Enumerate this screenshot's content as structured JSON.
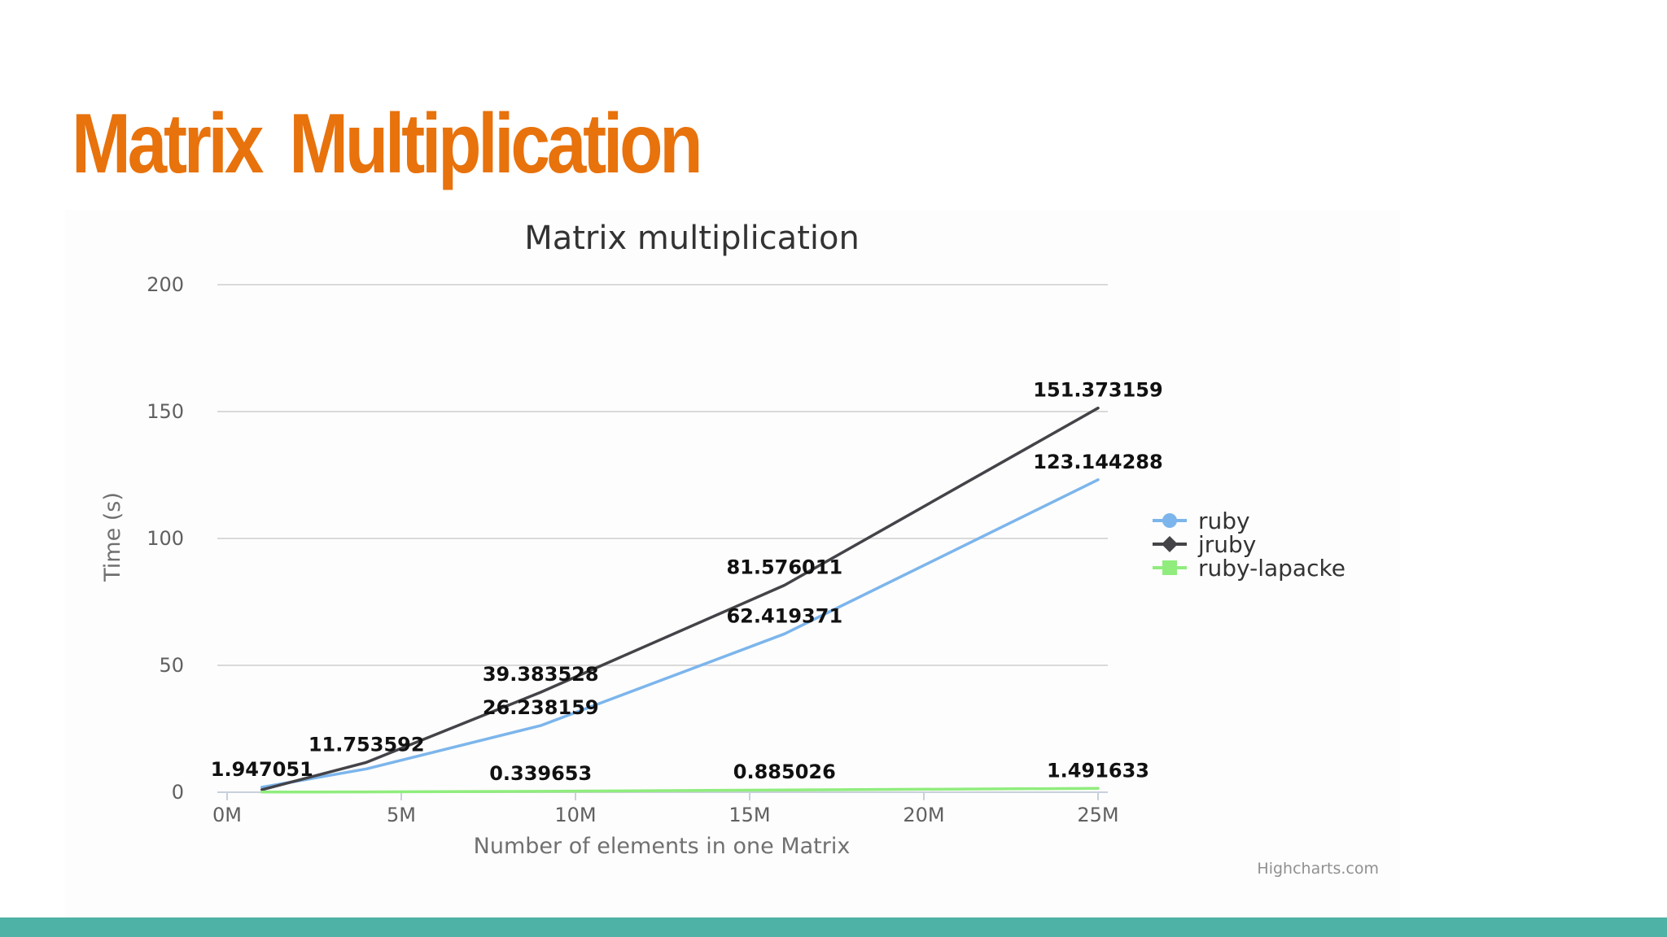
{
  "slide": {
    "title": "Matrix  Multiplication"
  },
  "chart_data": {
    "type": "line",
    "title": "Matrix multiplication",
    "xlabel": "Number of elements in one Matrix",
    "ylabel": "Time (s)",
    "xlim": [
      0,
      25000000
    ],
    "ylim": [
      0,
      200
    ],
    "x_ticks": [
      {
        "value": 0,
        "label": "0M"
      },
      {
        "value": 5000000,
        "label": "5M"
      },
      {
        "value": 10000000,
        "label": "10M"
      },
      {
        "value": 15000000,
        "label": "15M"
      },
      {
        "value": 20000000,
        "label": "20M"
      },
      {
        "value": 25000000,
        "label": "25M"
      }
    ],
    "y_ticks": [
      {
        "value": 0,
        "label": "0"
      },
      {
        "value": 50,
        "label": "50"
      },
      {
        "value": 100,
        "label": "100"
      },
      {
        "value": 150,
        "label": "150"
      },
      {
        "value": 200,
        "label": "200"
      }
    ],
    "grid": true,
    "legend_position": "right",
    "credit": "Highcharts.com",
    "series": [
      {
        "name": "ruby",
        "color": "#7cb5ec",
        "marker": "circle",
        "points": [
          {
            "x": 1000000,
            "y": 1.947051,
            "label": "1.947051"
          },
          {
            "x": 4000000,
            "y": 9.2
          },
          {
            "x": 9000000,
            "y": 26.238159,
            "label": "26.238159"
          },
          {
            "x": 16000000,
            "y": 62.419371,
            "label": "62.419371"
          },
          {
            "x": 25000000,
            "y": 123.144288,
            "label": "123.144288"
          }
        ]
      },
      {
        "name": "jruby",
        "color": "#434348",
        "marker": "diamond",
        "points": [
          {
            "x": 1000000,
            "y": 1.0
          },
          {
            "x": 4000000,
            "y": 11.753592,
            "label": "11.753592"
          },
          {
            "x": 9000000,
            "y": 39.383528,
            "label": "39.383528"
          },
          {
            "x": 16000000,
            "y": 81.576011,
            "label": "81.576011"
          },
          {
            "x": 25000000,
            "y": 151.373159,
            "label": "151.373159"
          }
        ]
      },
      {
        "name": "ruby-lapacke",
        "color": "#90ed7d",
        "marker": "square",
        "points": [
          {
            "x": 1000000,
            "y": 0.05
          },
          {
            "x": 4000000,
            "y": 0.12
          },
          {
            "x": 9000000,
            "y": 0.339653,
            "label": "0.339653"
          },
          {
            "x": 16000000,
            "y": 0.885026,
            "label": "0.885026"
          },
          {
            "x": 25000000,
            "y": 1.491633,
            "label": "1.491633"
          }
        ]
      }
    ]
  }
}
